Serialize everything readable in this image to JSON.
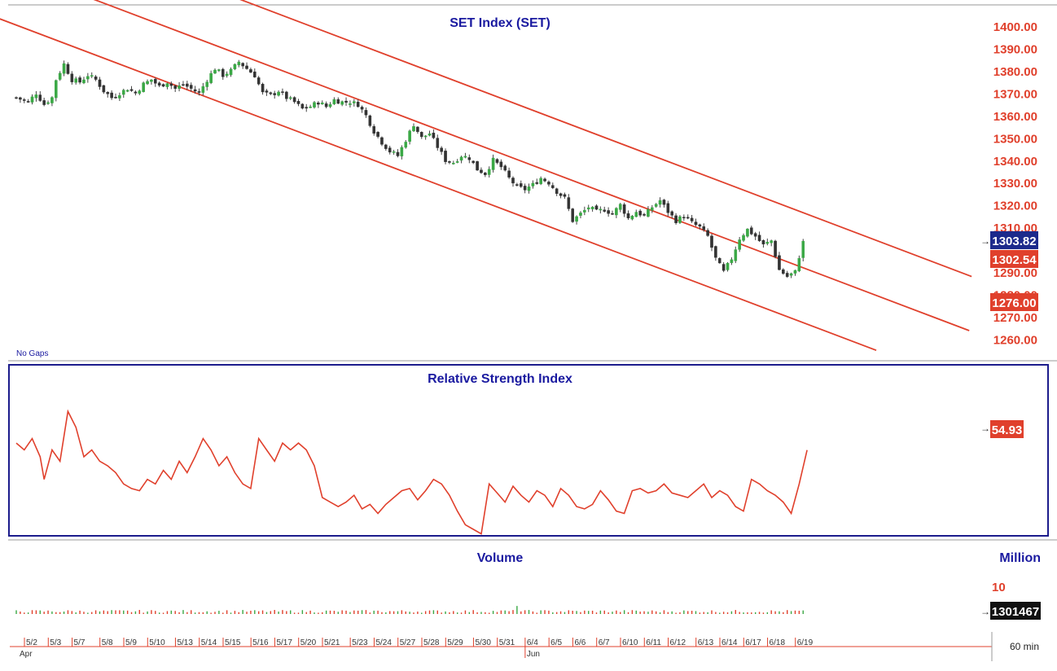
{
  "colors": {
    "accent_red": "#e0402c",
    "title_blue": "#1a1aa0",
    "tag_blue": "#1c2a8c",
    "tag_black": "#111111",
    "bull_green": "#3aa845",
    "bear_dark": "#333333"
  },
  "panels": {
    "price": {
      "title": "SET Index (SET)",
      "note": "No Gaps"
    },
    "rsi": {
      "title": "Relative Strength Index"
    },
    "volume": {
      "title": "Volume",
      "unit": "Million",
      "unit_tick": "10"
    }
  },
  "footer": {
    "interval": "60 min"
  },
  "tags": {
    "last_price": "1303.82",
    "upper_line": "1302.54",
    "lower_line": "1276.00",
    "rsi_value": "54.93",
    "volume_value": "1301467"
  },
  "chart_data": [
    {
      "type": "candlestick",
      "title": "SET Index (SET)",
      "y_ticks": [
        "1400.00",
        "1390.00",
        "1380.00",
        "1370.00",
        "1360.00",
        "1350.00",
        "1340.00",
        "1330.00",
        "1320.00",
        "1310.00",
        "1290.00",
        "1280.00",
        "1270.00",
        "1260.00"
      ],
      "ylim": [
        1255,
        1406
      ],
      "grid": false,
      "x_ticks": [
        "5/2",
        "5/3",
        "5/7",
        "5/8",
        "5/9",
        "5/10",
        "5/13",
        "5/14",
        "5/15",
        "5/16",
        "5/17",
        "5/20",
        "5/21",
        "5/23",
        "5/24",
        "5/27",
        "5/28",
        "5/29",
        "5/30",
        "5/31",
        "6/4",
        "6/5",
        "6/6",
        "6/7",
        "6/10",
        "6/11",
        "6/12",
        "6/13",
        "6/14",
        "6/17",
        "6/18",
        "6/19"
      ],
      "x_month_labels": [
        "Apr",
        "Jun"
      ],
      "close_path": [
        [
          0,
          1368
        ],
        [
          3,
          1366
        ],
        [
          5,
          1370
        ],
        [
          7,
          1365
        ],
        [
          9,
          1368
        ],
        [
          10,
          1376
        ],
        [
          12,
          1383
        ],
        [
          14,
          1376
        ],
        [
          16,
          1375
        ],
        [
          18,
          1378
        ],
        [
          20,
          1376
        ],
        [
          22,
          1371
        ],
        [
          24,
          1368
        ],
        [
          26,
          1370
        ],
        [
          28,
          1372
        ],
        [
          30,
          1370
        ],
        [
          32,
          1374
        ],
        [
          34,
          1376
        ],
        [
          36,
          1373
        ],
        [
          38,
          1375
        ],
        [
          40,
          1372
        ],
        [
          42,
          1374
        ],
        [
          44,
          1372
        ],
        [
          46,
          1370
        ],
        [
          48,
          1376
        ],
        [
          50,
          1381
        ],
        [
          52,
          1378
        ],
        [
          54,
          1380
        ],
        [
          56,
          1384
        ],
        [
          58,
          1381
        ],
        [
          60,
          1378
        ],
        [
          62,
          1370
        ],
        [
          64,
          1369
        ],
        [
          66,
          1371
        ],
        [
          68,
          1368
        ],
        [
          70,
          1366
        ],
        [
          72,
          1363
        ],
        [
          74,
          1364
        ],
        [
          76,
          1366
        ],
        [
          78,
          1364
        ],
        [
          80,
          1367
        ],
        [
          82,
          1366
        ],
        [
          84,
          1366
        ],
        [
          86,
          1365
        ],
        [
          88,
          1360
        ],
        [
          90,
          1353
        ],
        [
          92,
          1348
        ],
        [
          94,
          1344
        ],
        [
          96,
          1342
        ],
        [
          98,
          1349
        ],
        [
          100,
          1356
        ],
        [
          102,
          1350
        ],
        [
          104,
          1352
        ],
        [
          106,
          1346
        ],
        [
          108,
          1340
        ],
        [
          110,
          1339
        ],
        [
          112,
          1342
        ],
        [
          114,
          1341
        ],
        [
          116,
          1336
        ],
        [
          118,
          1334
        ],
        [
          120,
          1340
        ],
        [
          122,
          1337
        ],
        [
          124,
          1332
        ],
        [
          126,
          1328
        ],
        [
          128,
          1327
        ],
        [
          130,
          1329
        ],
        [
          132,
          1332
        ],
        [
          134,
          1330
        ],
        [
          136,
          1326
        ],
        [
          138,
          1323
        ],
        [
          140,
          1313
        ],
        [
          142,
          1316
        ],
        [
          144,
          1319
        ],
        [
          146,
          1317
        ],
        [
          148,
          1318
        ],
        [
          150,
          1316
        ],
        [
          152,
          1320
        ],
        [
          154,
          1314
        ],
        [
          156,
          1317
        ],
        [
          158,
          1315
        ],
        [
          160,
          1319
        ],
        [
          162,
          1322
        ],
        [
          164,
          1317
        ],
        [
          166,
          1313
        ],
        [
          168,
          1315
        ],
        [
          170,
          1312
        ],
        [
          172,
          1310
        ],
        [
          174,
          1306
        ],
        [
          176,
          1296
        ],
        [
          178,
          1290
        ],
        [
          180,
          1296
        ],
        [
          182,
          1305
        ],
        [
          184,
          1309
        ],
        [
          186,
          1306
        ],
        [
          188,
          1302
        ],
        [
          190,
          1304
        ],
        [
          192,
          1291
        ],
        [
          194,
          1288
        ],
        [
          196,
          1290
        ],
        [
          198,
          1303.82
        ]
      ],
      "lines": [
        {
          "name": "",
          "from": [
            -17.2,
            1412
          ],
          "to": [
            216.4,
            1255
          ]
        },
        {
          "name": "",
          "from": [
            19.4,
            1412
          ],
          "to": [
            239.8,
            1263.8
          ]
        },
        {
          "name": "",
          "from": [
            56.2,
            1412
          ],
          "to": [
            240.4,
            1288
          ]
        }
      ],
      "last_value": 1303.82
    },
    {
      "type": "line",
      "title": "Relative Strength Index",
      "ylim": [
        20,
        90
      ],
      "series": [
        {
          "name": "",
          "values": [
            [
              0,
              58
            ],
            [
              2,
              55
            ],
            [
              4,
              60
            ],
            [
              6,
              52
            ],
            [
              7,
              42
            ],
            [
              9,
              55
            ],
            [
              11,
              50
            ],
            [
              13,
              72
            ],
            [
              15,
              65
            ],
            [
              17,
              52
            ],
            [
              19,
              55
            ],
            [
              21,
              50
            ],
            [
              23,
              48
            ],
            [
              25,
              45
            ],
            [
              27,
              40
            ],
            [
              29,
              38
            ],
            [
              31,
              37
            ],
            [
              33,
              42
            ],
            [
              35,
              40
            ],
            [
              37,
              46
            ],
            [
              39,
              42
            ],
            [
              41,
              50
            ],
            [
              43,
              45
            ],
            [
              45,
              52
            ],
            [
              47,
              60
            ],
            [
              49,
              55
            ],
            [
              51,
              48
            ],
            [
              53,
              52
            ],
            [
              55,
              45
            ],
            [
              57,
              40
            ],
            [
              59,
              38
            ],
            [
              61,
              60
            ],
            [
              63,
              55
            ],
            [
              65,
              50
            ],
            [
              67,
              58
            ],
            [
              69,
              55
            ],
            [
              71,
              58
            ],
            [
              73,
              55
            ],
            [
              75,
              48
            ],
            [
              77,
              34
            ],
            [
              79,
              32
            ],
            [
              81,
              30
            ],
            [
              83,
              32
            ],
            [
              85,
              35
            ],
            [
              87,
              29
            ],
            [
              89,
              31
            ],
            [
              91,
              27
            ],
            [
              93,
              31
            ],
            [
              95,
              34
            ],
            [
              97,
              37
            ],
            [
              99,
              38
            ],
            [
              101,
              33
            ],
            [
              103,
              37
            ],
            [
              105,
              42
            ],
            [
              107,
              40
            ],
            [
              109,
              35
            ],
            [
              111,
              28
            ],
            [
              113,
              22
            ],
            [
              115,
              20
            ],
            [
              117,
              18
            ],
            [
              119,
              40
            ],
            [
              121,
              36
            ],
            [
              123,
              32
            ],
            [
              125,
              39
            ],
            [
              127,
              35
            ],
            [
              129,
              32
            ],
            [
              131,
              37
            ],
            [
              133,
              35
            ],
            [
              135,
              30
            ],
            [
              137,
              38
            ],
            [
              139,
              35
            ],
            [
              141,
              30
            ],
            [
              143,
              29
            ],
            [
              145,
              31
            ],
            [
              147,
              37
            ],
            [
              149,
              33
            ],
            [
              151,
              28
            ],
            [
              153,
              27
            ],
            [
              155,
              37
            ],
            [
              157,
              38
            ],
            [
              159,
              36
            ],
            [
              161,
              37
            ],
            [
              163,
              40
            ],
            [
              165,
              36
            ],
            [
              167,
              35
            ],
            [
              169,
              34
            ],
            [
              171,
              37
            ],
            [
              173,
              40
            ],
            [
              175,
              34
            ],
            [
              177,
              37
            ],
            [
              179,
              35
            ],
            [
              181,
              30
            ],
            [
              183,
              28
            ],
            [
              185,
              42
            ],
            [
              187,
              40
            ],
            [
              189,
              37
            ],
            [
              191,
              35
            ],
            [
              193,
              32
            ],
            [
              195,
              27
            ],
            [
              197,
              40
            ],
            [
              199,
              54.93
            ]
          ]
        }
      ],
      "last_value": 54.93
    },
    {
      "type": "bar",
      "title": "Volume",
      "unit": "Million",
      "y_ticks": [
        "10"
      ],
      "last_value": 1301467
    }
  ]
}
